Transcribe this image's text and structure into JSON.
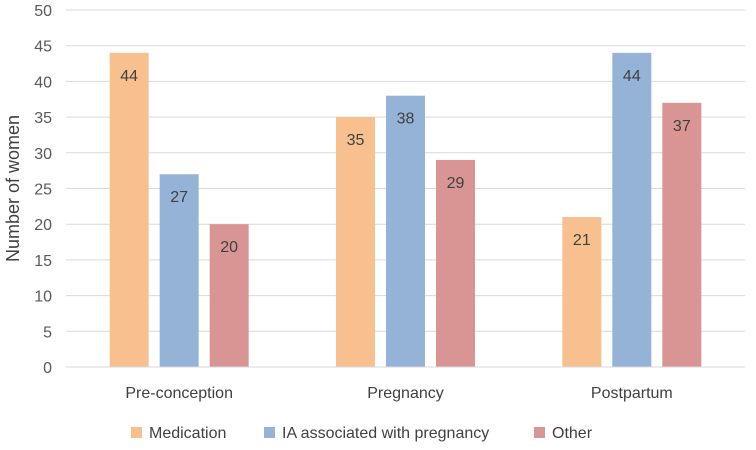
{
  "chart_data": {
    "type": "bar",
    "title": "",
    "xlabel": "",
    "ylabel": "Number of women",
    "ylim": [
      0,
      50
    ],
    "ytick_step": 5,
    "yticks": [
      "0",
      "5",
      "10",
      "15",
      "20",
      "25",
      "30",
      "35",
      "40",
      "45",
      "50"
    ],
    "grid": true,
    "legend_position": "bottom",
    "categories": [
      "Pre-conception",
      "Pregnancy",
      "Postpartum"
    ],
    "series": [
      {
        "name": "Medication",
        "color": "#F8C08E",
        "values": [
          44,
          35,
          21
        ]
      },
      {
        "name": "IA associated with pregnancy",
        "color": "#95B3D7",
        "values": [
          27,
          38,
          44
        ]
      },
      {
        "name": "Other",
        "color": "#D99594",
        "values": [
          20,
          29,
          37
        ]
      }
    ],
    "data_labels": [
      [
        "44",
        "35",
        "21"
      ],
      [
        "27",
        "38",
        "44"
      ],
      [
        "20",
        "29",
        "37"
      ]
    ]
  }
}
